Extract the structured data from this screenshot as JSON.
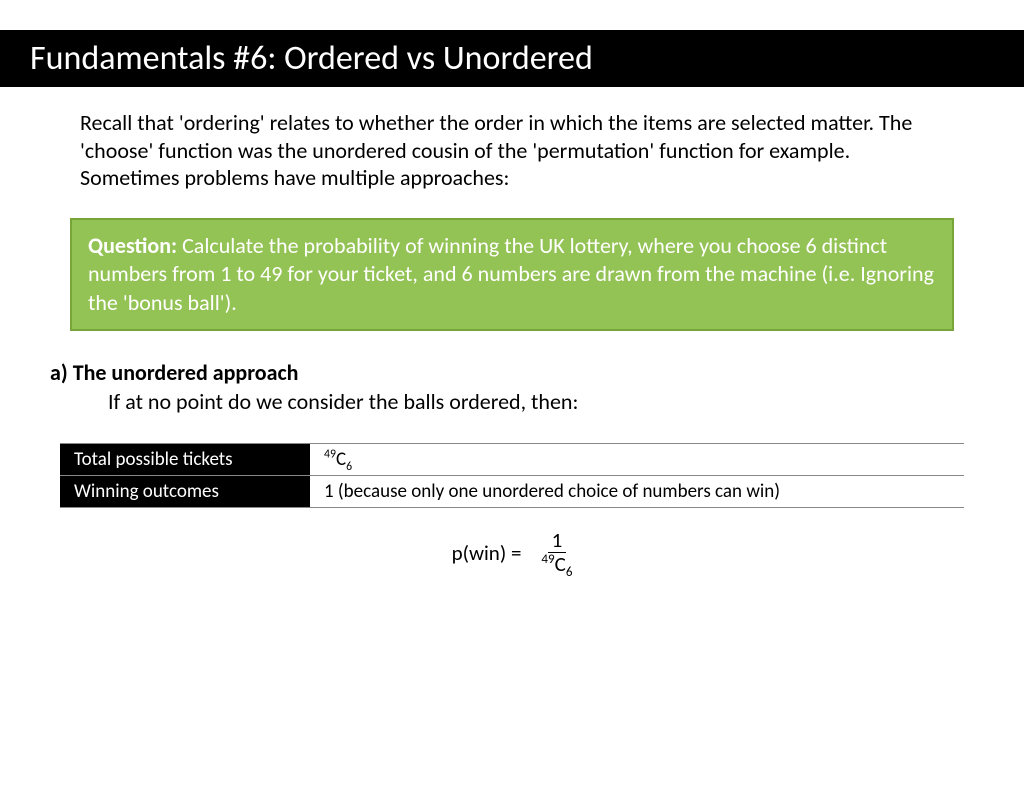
{
  "header": {
    "title": "Fundamentals #6: Ordered vs Unordered"
  },
  "intro": {
    "text": "Recall that 'ordering' relates to whether the order in which the items are selected matter. The 'choose' function was the unordered cousin of the 'permutation' function for example.\nSometimes problems have multiple approaches:"
  },
  "question": {
    "label": "Question:",
    "text": " Calculate the probability of winning the UK  lottery, where you choose 6 distinct numbers from 1 to 49 for your ticket, and 6 numbers are drawn from the machine (i.e. Ignoring the 'bonus ball')."
  },
  "approach": {
    "heading": "a) The unordered approach",
    "sub": "If at no point do we consider the balls ordered, then:"
  },
  "table": {
    "rows": [
      {
        "label": "Total possible tickets",
        "value_type": "comb",
        "n": "49",
        "r": "6"
      },
      {
        "label": "Winning outcomes",
        "value_type": "text",
        "value": "1 (because only one unordered choice of numbers can win)"
      }
    ]
  },
  "formula": {
    "lhs": "p(win) = ",
    "numerator": "1",
    "denom_n": "49",
    "denom_r": "6"
  },
  "colors": {
    "header_bg": "#000000",
    "header_text": "#ffffff",
    "question_bg": "#93c255",
    "question_border": "#77a53a",
    "question_text": "#ffffff",
    "body_text": "#000000"
  }
}
